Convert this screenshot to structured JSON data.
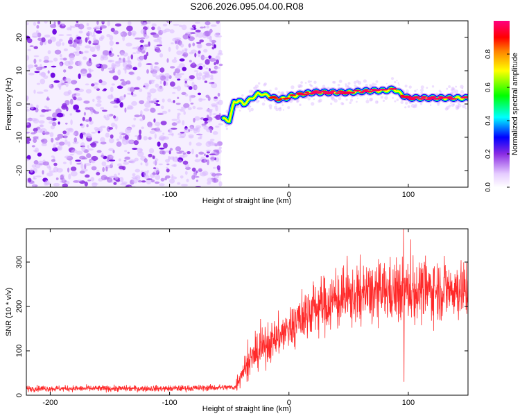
{
  "title": "S206.2026.095.04.00.R08",
  "chart_data": [
    {
      "type": "heatmap",
      "xlabel": "Height of straight line (km)",
      "ylabel": "Frequency (Hz)",
      "xlim": [
        -220,
        150
      ],
      "ylim": [
        -25,
        25
      ],
      "xticks": [
        -200,
        -100,
        0,
        100
      ],
      "yticks": [
        -20,
        -10,
        0,
        10,
        20
      ],
      "colorbar": {
        "label": "Normalized spectral amplitude",
        "range": [
          0,
          1
        ],
        "ticks": [
          "0.0",
          "0.2",
          "0.4",
          "0.6",
          "0.8"
        ],
        "colors": [
          "#ffffff",
          "#8a2be2",
          "#0000ff",
          "#00ffff",
          "#00ff00",
          "#ffff00",
          "#ff7f00",
          "#ff0000",
          "#ff0080"
        ]
      },
      "noise_region_x": [
        -220,
        -57
      ],
      "signal_track": {
        "x": [
          -55,
          -50,
          -46,
          -42,
          -38,
          -34,
          -30,
          -26,
          -22,
          -18,
          -14,
          -10,
          -6,
          -2,
          2,
          6,
          10,
          15,
          20,
          30,
          40,
          50,
          60,
          70,
          80,
          88,
          92,
          96,
          100,
          110,
          120,
          130,
          140,
          150
        ],
        "y": [
          -4.5,
          -5.0,
          0.5,
          1.0,
          0.0,
          1.0,
          2.0,
          3.0,
          3.0,
          2.5,
          2.0,
          1.5,
          1.5,
          1.8,
          2.5,
          2.5,
          3.0,
          3.2,
          3.5,
          3.5,
          3.5,
          3.5,
          3.8,
          4.0,
          4.0,
          4.5,
          3.5,
          2.5,
          1.8,
          1.8,
          1.8,
          1.8,
          1.8,
          1.8
        ],
        "amplitude": [
          0.5,
          0.6,
          0.6,
          0.7,
          0.7,
          0.75,
          0.75,
          0.8,
          0.8,
          0.8,
          0.8,
          0.85,
          0.85,
          0.85,
          0.85,
          0.9,
          0.9,
          0.9,
          0.95,
          0.95,
          0.95,
          0.9,
          0.95,
          0.95,
          0.95,
          0.9,
          0.9,
          0.85,
          0.9,
          0.95,
          0.95,
          0.95,
          0.95,
          0.95
        ]
      }
    },
    {
      "type": "line",
      "xlabel": "Height of straight line (km)",
      "ylabel": "SNR (10 * v/v)",
      "xlim": [
        -220,
        150
      ],
      "ylim": [
        0,
        375
      ],
      "xticks": [
        -200,
        -100,
        0,
        100
      ],
      "yticks": [
        0,
        100,
        200,
        300
      ],
      "color": "#ff2a2a",
      "trend": {
        "x": [
          -220,
          -100,
          -45,
          -40,
          -30,
          -20,
          -10,
          0,
          10,
          20,
          40,
          60,
          80,
          100,
          120,
          150
        ],
        "y": [
          15,
          15,
          18,
          50,
          85,
          110,
          130,
          150,
          175,
          195,
          215,
          225,
          232,
          235,
          238,
          240
        ]
      },
      "spike": {
        "x": 96,
        "max": 375,
        "min": 30
      }
    }
  ]
}
